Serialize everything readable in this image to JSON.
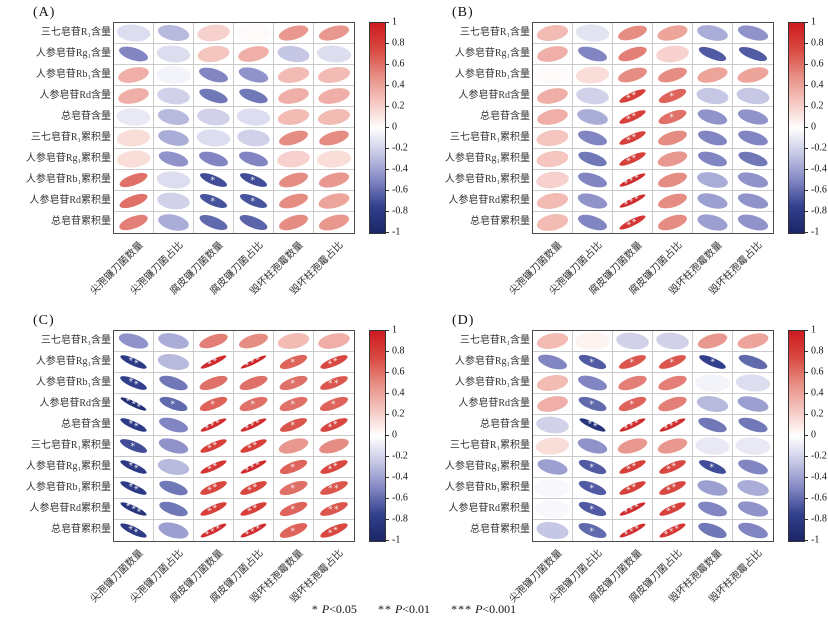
{
  "figure": {
    "description": "Four-panel correlation ellipse matrices between saponin contents/accumulations and pathogenic fungi quantities/proportions"
  },
  "caption": {
    "p_symbol": "P",
    "items": [
      {
        "stars": "*",
        "threshold": "<0.05"
      },
      {
        "stars": "**",
        "threshold": "<0.01"
      },
      {
        "stars": "***",
        "threshold": "<0.001"
      }
    ]
  },
  "colorbar": {
    "ticks": [
      "1",
      "0.8",
      "0.6",
      "0.4",
      "0.2",
      "0",
      "-0.2",
      "-0.4",
      "-0.6",
      "-0.8",
      "-1"
    ],
    "max_color": "#cd1a20",
    "mid_color": "#ffffff",
    "min_color": "#1b2666"
  },
  "chart_data": [
    {
      "type": "heatmap",
      "title": "(A)",
      "zlim": [
        -1,
        1
      ],
      "rows": [
        "三七皂苷R₁含量",
        "人参皂苷Rg₁含量",
        "人参皂苷Rb₁含量",
        "人参皂苷Rd含量",
        "总皂苷含量",
        "三七皂苷R₁累积量",
        "人参皂苷Rg₁累积量",
        "人参皂苷Rb₁累积量",
        "人参皂苷Rd累积量",
        "总皂苷累积量"
      ],
      "columns": [
        "尖孢镰刀菌数量",
        "尖孢镰刀菌占比",
        "腐皮镰刀菌数量",
        "腐皮镰刀菌占比",
        "毁坏柱孢霉数量",
        "毁坏柱孢霉占比"
      ],
      "values": [
        [
          -0.15,
          -0.3,
          0.2,
          0.02,
          0.45,
          0.45
        ],
        [
          -0.5,
          -0.15,
          0.25,
          0.35,
          -0.25,
          -0.15
        ],
        [
          0.35,
          -0.05,
          -0.5,
          -0.45,
          0.3,
          0.3
        ],
        [
          0.35,
          -0.2,
          -0.55,
          -0.55,
          0.35,
          0.35
        ],
        [
          -0.1,
          -0.3,
          -0.2,
          -0.15,
          0.3,
          0.3
        ],
        [
          0.15,
          -0.35,
          -0.15,
          -0.2,
          0.5,
          0.5
        ],
        [
          0.15,
          -0.45,
          -0.5,
          -0.5,
          0.2,
          0.15
        ],
        [
          0.6,
          -0.15,
          -0.7,
          -0.7,
          0.5,
          0.45
        ],
        [
          0.6,
          -0.2,
          -0.68,
          -0.68,
          0.5,
          0.4
        ],
        [
          0.55,
          -0.35,
          -0.6,
          -0.62,
          0.5,
          0.45
        ]
      ],
      "significance": [
        [
          "",
          "",
          "",
          "",
          "",
          ""
        ],
        [
          "",
          "",
          "",
          "",
          "",
          ""
        ],
        [
          "",
          "",
          "",
          "",
          "",
          ""
        ],
        [
          "",
          "",
          "",
          "",
          "",
          ""
        ],
        [
          "",
          "",
          "",
          "",
          "",
          ""
        ],
        [
          "",
          "",
          "",
          "",
          "",
          ""
        ],
        [
          "",
          "",
          "",
          "",
          "",
          ""
        ],
        [
          "",
          "",
          "*",
          "*",
          "",
          ""
        ],
        [
          "",
          "",
          "*",
          "*",
          "",
          ""
        ],
        [
          "",
          "",
          "",
          "",
          "",
          ""
        ]
      ]
    },
    {
      "type": "heatmap",
      "title": "(B)",
      "zlim": [
        -1,
        1
      ],
      "rows": [
        "三七皂苷R₁含量",
        "人参皂苷Rg₁含量",
        "人参皂苷Rb₁含量",
        "人参皂苷Rd含量",
        "总皂苷含量",
        "三七皂苷R₁累积量",
        "人参皂苷Rg₁累积量",
        "人参皂苷Rb₁累积量",
        "人参皂苷Rd累积量",
        "总皂苷累积量"
      ],
      "columns": [
        "尖孢镰刀菌数量",
        "尖孢镰刀菌占比",
        "腐皮镰刀菌数量",
        "腐皮镰刀菌占比",
        "毁坏柱孢霉数量",
        "毁坏柱孢霉占比"
      ],
      "values": [
        [
          0.3,
          -0.12,
          0.5,
          0.4,
          -0.35,
          -0.45
        ],
        [
          0.35,
          -0.5,
          0.55,
          0.2,
          -0.65,
          -0.65
        ],
        [
          0.02,
          0.15,
          0.5,
          0.5,
          0.4,
          0.4
        ],
        [
          0.35,
          -0.2,
          0.8,
          0.65,
          -0.25,
          -0.25
        ],
        [
          0.35,
          -0.35,
          0.8,
          0.6,
          -0.45,
          -0.45
        ],
        [
          0.25,
          -0.5,
          0.8,
          0.5,
          -0.5,
          -0.5
        ],
        [
          0.25,
          -0.55,
          0.8,
          0.45,
          -0.5,
          -0.55
        ],
        [
          0.2,
          -0.5,
          0.9,
          0.5,
          -0.35,
          -0.45
        ],
        [
          0.3,
          -0.45,
          0.9,
          0.5,
          -0.4,
          -0.45
        ],
        [
          0.3,
          -0.5,
          0.85,
          0.5,
          -0.4,
          -0.45
        ]
      ],
      "significance": [
        [
          "",
          "",
          "",
          "",
          "",
          ""
        ],
        [
          "",
          "",
          "",
          "",
          "",
          ""
        ],
        [
          "",
          "",
          "",
          "",
          "",
          ""
        ],
        [
          "",
          "",
          "**",
          "*",
          "",
          ""
        ],
        [
          "",
          "",
          "**",
          "*",
          "",
          ""
        ],
        [
          "",
          "",
          "**",
          "",
          "",
          ""
        ],
        [
          "",
          "",
          "**",
          "",
          "",
          ""
        ],
        [
          "",
          "",
          "***",
          "",
          "",
          ""
        ],
        [
          "",
          "",
          "***",
          "",
          "",
          ""
        ],
        [
          "",
          "",
          "**",
          "",
          "",
          ""
        ]
      ]
    },
    {
      "type": "heatmap",
      "title": "(C)",
      "zlim": [
        -1,
        1
      ],
      "rows": [
        "三七皂苷R₁含量",
        "人参皂苷Rg₁含量",
        "人参皂苷Rb₁含量",
        "人参皂苷Rd含量",
        "总皂苷含量",
        "三七皂苷R₁累积量",
        "人参皂苷Rg₁累积量",
        "人参皂苷Rb₁累积量",
        "人参皂苷Rd累积量",
        "总皂苷累积量"
      ],
      "columns": [
        "尖孢镰刀菌数量",
        "尖孢镰刀菌占比",
        "腐皮镰刀菌数量",
        "腐皮镰刀菌占比",
        "毁坏柱孢霉数量",
        "毁坏柱孢霉占比"
      ],
      "values": [
        [
          -0.45,
          -0.35,
          0.55,
          0.5,
          0.3,
          0.35
        ],
        [
          -0.8,
          -0.3,
          0.9,
          0.95,
          0.65,
          0.75
        ],
        [
          -0.75,
          -0.55,
          0.6,
          0.6,
          0.6,
          0.7
        ],
        [
          -0.9,
          -0.6,
          0.65,
          0.6,
          0.6,
          0.65
        ],
        [
          -0.8,
          -0.5,
          0.9,
          0.9,
          0.7,
          0.75
        ],
        [
          -0.7,
          -0.45,
          0.8,
          0.8,
          0.45,
          0.5
        ],
        [
          -0.8,
          -0.3,
          0.85,
          0.9,
          0.65,
          0.75
        ],
        [
          -0.8,
          -0.55,
          0.75,
          0.75,
          0.6,
          0.7
        ],
        [
          -0.85,
          -0.55,
          0.8,
          0.8,
          0.65,
          0.7
        ],
        [
          -0.8,
          -0.4,
          0.9,
          0.9,
          0.65,
          0.75
        ]
      ],
      "significance": [
        [
          "",
          "",
          "",
          "",
          "",
          ""
        ],
        [
          "**",
          "",
          "**",
          "***",
          "*",
          "**"
        ],
        [
          "**",
          "",
          "",
          "",
          "*",
          "**"
        ],
        [
          "***",
          "*",
          "*",
          "*",
          "*",
          "*"
        ],
        [
          "**",
          "",
          "***",
          "***",
          "*",
          "**"
        ],
        [
          "*",
          "",
          "**",
          "**",
          "",
          ""
        ],
        [
          "**",
          "",
          "**",
          "***",
          "*",
          "**"
        ],
        [
          "**",
          "",
          "**",
          "**",
          "*",
          "**"
        ],
        [
          "***",
          "",
          "**",
          "**",
          "*",
          "**"
        ],
        [
          "**",
          "",
          "***",
          "***",
          "*",
          "**"
        ]
      ]
    },
    {
      "type": "heatmap",
      "title": "(D)",
      "zlim": [
        -1,
        1
      ],
      "rows": [
        "三七皂苷R₁含量",
        "人参皂苷Rg₁含量",
        "人参皂苷Rb₁含量",
        "人参皂苷Rd含量",
        "总皂苷含量",
        "三七皂苷R₁累积量",
        "人参皂苷Rg₁累积量",
        "人参皂苷Rb₁累积量",
        "人参皂苷Rd累积量",
        "总皂苷累积量"
      ],
      "columns": [
        "尖孢镰刀菌数量",
        "尖孢镰刀菌占比",
        "腐皮镰刀菌数量",
        "腐皮镰刀菌占比",
        "毁坏柱孢霉数量",
        "毁坏柱孢霉占比"
      ],
      "values": [
        [
          0.3,
          0.05,
          -0.2,
          -0.2,
          0.45,
          0.4
        ],
        [
          -0.5,
          -0.65,
          0.7,
          0.7,
          -0.75,
          -0.6
        ],
        [
          0.3,
          -0.5,
          0.55,
          0.55,
          -0.05,
          -0.15
        ],
        [
          0.35,
          -0.6,
          0.65,
          0.55,
          -0.3,
          -0.4
        ],
        [
          -0.2,
          -0.85,
          0.9,
          0.9,
          -0.55,
          -0.55
        ],
        [
          0.15,
          -0.45,
          0.45,
          0.45,
          -0.1,
          -0.1
        ],
        [
          -0.4,
          -0.65,
          0.8,
          0.75,
          -0.7,
          -0.5
        ],
        [
          -0.03,
          -0.65,
          0.8,
          0.75,
          -0.4,
          -0.35
        ],
        [
          -0.03,
          -0.65,
          0.9,
          0.8,
          -0.5,
          -0.45
        ],
        [
          -0.25,
          -0.6,
          0.9,
          0.85,
          -0.55,
          -0.5
        ]
      ],
      "significance": [
        [
          "",
          "",
          "",
          "",
          "",
          ""
        ],
        [
          "",
          "*",
          "*",
          "*",
          "*",
          ""
        ],
        [
          "",
          "",
          "",
          "",
          "",
          ""
        ],
        [
          "",
          "*",
          "*",
          "",
          "",
          ""
        ],
        [
          "",
          "**",
          "***",
          "***",
          "",
          ""
        ],
        [
          "",
          "",
          "",
          "",
          "",
          ""
        ],
        [
          "",
          "*",
          "**",
          "**",
          "*",
          ""
        ],
        [
          "",
          "*",
          "**",
          "**",
          "",
          ""
        ],
        [
          "",
          "*",
          "***",
          "**",
          "",
          ""
        ],
        [
          "",
          "*",
          "***",
          "***",
          "",
          ""
        ]
      ]
    }
  ]
}
